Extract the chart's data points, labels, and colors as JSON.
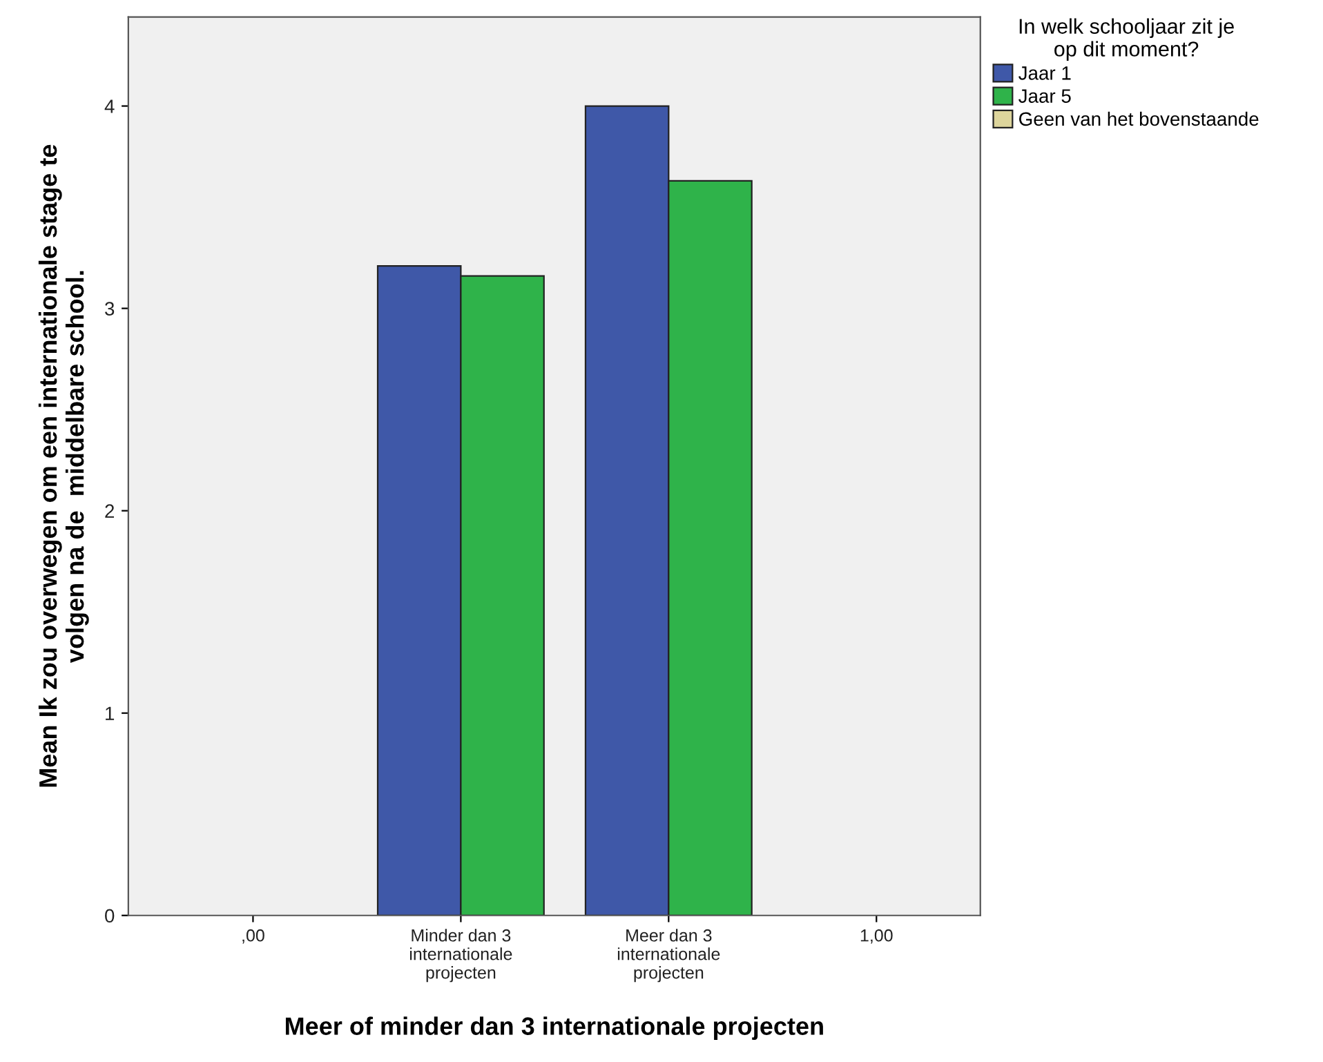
{
  "chart_data": {
    "type": "bar",
    "categories": [
      ",00",
      "Minder dan 3\ninternationale\nprojecten",
      "Meer dan 3\ninternationale\nprojecten",
      "1,00"
    ],
    "series": [
      {
        "name": "Jaar 1",
        "color": "#3f58a8",
        "values": [
          null,
          3.21,
          4.0,
          null
        ]
      },
      {
        "name": "Jaar 5",
        "color": "#2fb34a",
        "values": [
          null,
          3.16,
          3.63,
          null
        ]
      },
      {
        "name": "Geen van het bovenstaande",
        "color": "#ddd59c",
        "values": [
          null,
          null,
          null,
          null
        ]
      }
    ],
    "xlabel": "Meer of minder dan 3 internationale projecten",
    "ylabel": "Mean Ik zou overwegen om een internationale stage te\nvolgen na de  middelbare school.",
    "legend_title": "In welk schooljaar zit je\nop dit moment?",
    "legend": "right",
    "ylim": [
      0,
      4.44
    ],
    "yticks": [
      0,
      1,
      2,
      3,
      4
    ],
    "grid": false
  }
}
